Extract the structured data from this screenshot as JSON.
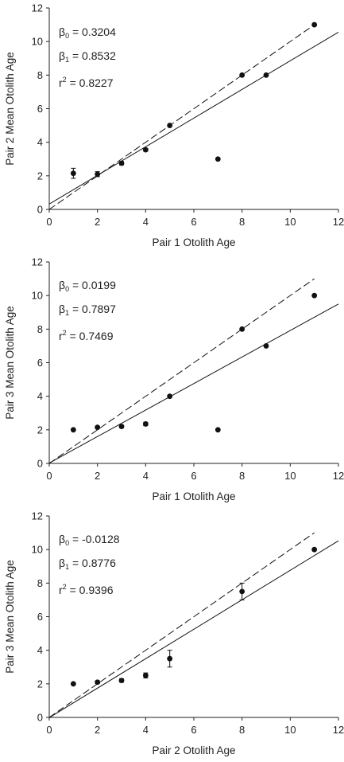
{
  "chart_data": [
    {
      "type": "scatter",
      "xlabel": "Pair 1 Otolith Age",
      "ylabel": "Pair 2 Mean Otolith Age",
      "xlim": [
        0,
        12
      ],
      "ylim": [
        0,
        12
      ],
      "xticks": [
        "0",
        "2",
        "4",
        "6",
        "8",
        "10",
        "12"
      ],
      "yticks": [
        "0",
        "2",
        "4",
        "6",
        "8",
        "10",
        "12"
      ],
      "points": [
        {
          "x": 1,
          "y": 2.15,
          "err": 0.3
        },
        {
          "x": 2,
          "y": 2.1,
          "err": 0.15
        },
        {
          "x": 3,
          "y": 2.75,
          "err": 0.1
        },
        {
          "x": 4,
          "y": 3.55,
          "err": 0.08
        },
        {
          "x": 5,
          "y": 5.0,
          "err": 0
        },
        {
          "x": 7,
          "y": 3.0,
          "err": 0
        },
        {
          "x": 8,
          "y": 8.0,
          "err": 0
        },
        {
          "x": 9,
          "y": 8.0,
          "err": 0
        },
        {
          "x": 11,
          "y": 11.0,
          "err": 0
        }
      ],
      "regression": {
        "intercept": 0.3204,
        "slope": 0.8532
      },
      "one_to_one": {
        "x": [
          0,
          11
        ]
      },
      "stats": {
        "b0": "0.3204",
        "b1": "0.8532",
        "r2": "0.8227"
      }
    },
    {
      "type": "scatter",
      "xlabel": "Pair 1 Otolith Age",
      "ylabel": "Pair 3 Mean Otolith Age",
      "xlim": [
        0,
        12
      ],
      "ylim": [
        0,
        12
      ],
      "xticks": [
        "0",
        "2",
        "4",
        "6",
        "8",
        "10",
        "12"
      ],
      "yticks": [
        "0",
        "2",
        "4",
        "6",
        "8",
        "10",
        "12"
      ],
      "points": [
        {
          "x": 1,
          "y": 2.0,
          "err": 0
        },
        {
          "x": 2,
          "y": 2.15,
          "err": 0.05
        },
        {
          "x": 3,
          "y": 2.2,
          "err": 0.08
        },
        {
          "x": 4,
          "y": 2.35,
          "err": 0.1
        },
        {
          "x": 5,
          "y": 4.0,
          "err": 0
        },
        {
          "x": 7,
          "y": 2.0,
          "err": 0
        },
        {
          "x": 8,
          "y": 8.0,
          "err": 0
        },
        {
          "x": 9,
          "y": 7.0,
          "err": 0
        },
        {
          "x": 11,
          "y": 10.0,
          "err": 0
        }
      ],
      "regression": {
        "intercept": 0.0199,
        "slope": 0.7897
      },
      "one_to_one": {
        "x": [
          0,
          11
        ]
      },
      "stats": {
        "b0": "0.0199",
        "b1": "0.7897",
        "r2": "0.7469"
      }
    },
    {
      "type": "scatter",
      "xlabel": "Pair 2 Otolith Age",
      "ylabel": "Pair 3 Mean Otolith Age",
      "xlim": [
        0,
        12
      ],
      "ylim": [
        0,
        12
      ],
      "xticks": [
        "0",
        "2",
        "4",
        "6",
        "8",
        "10",
        "12"
      ],
      "yticks": [
        "0",
        "2",
        "4",
        "6",
        "8",
        "10",
        "12"
      ],
      "points": [
        {
          "x": 1,
          "y": 2.0,
          "err": 0
        },
        {
          "x": 2,
          "y": 2.1,
          "err": 0.08
        },
        {
          "x": 3,
          "y": 2.2,
          "err": 0.1
        },
        {
          "x": 4,
          "y": 2.5,
          "err": 0.15
        },
        {
          "x": 5,
          "y": 3.5,
          "err": 0.5
        },
        {
          "x": 8,
          "y": 7.5,
          "err": 0.5
        },
        {
          "x": 11,
          "y": 10.0,
          "err": 0
        }
      ],
      "regression": {
        "intercept": -0.0128,
        "slope": 0.8776
      },
      "one_to_one": {
        "x": [
          0,
          11
        ]
      },
      "stats": {
        "b0": "-0.0128",
        "b1": "0.8776",
        "r2": "0.9396"
      }
    }
  ]
}
